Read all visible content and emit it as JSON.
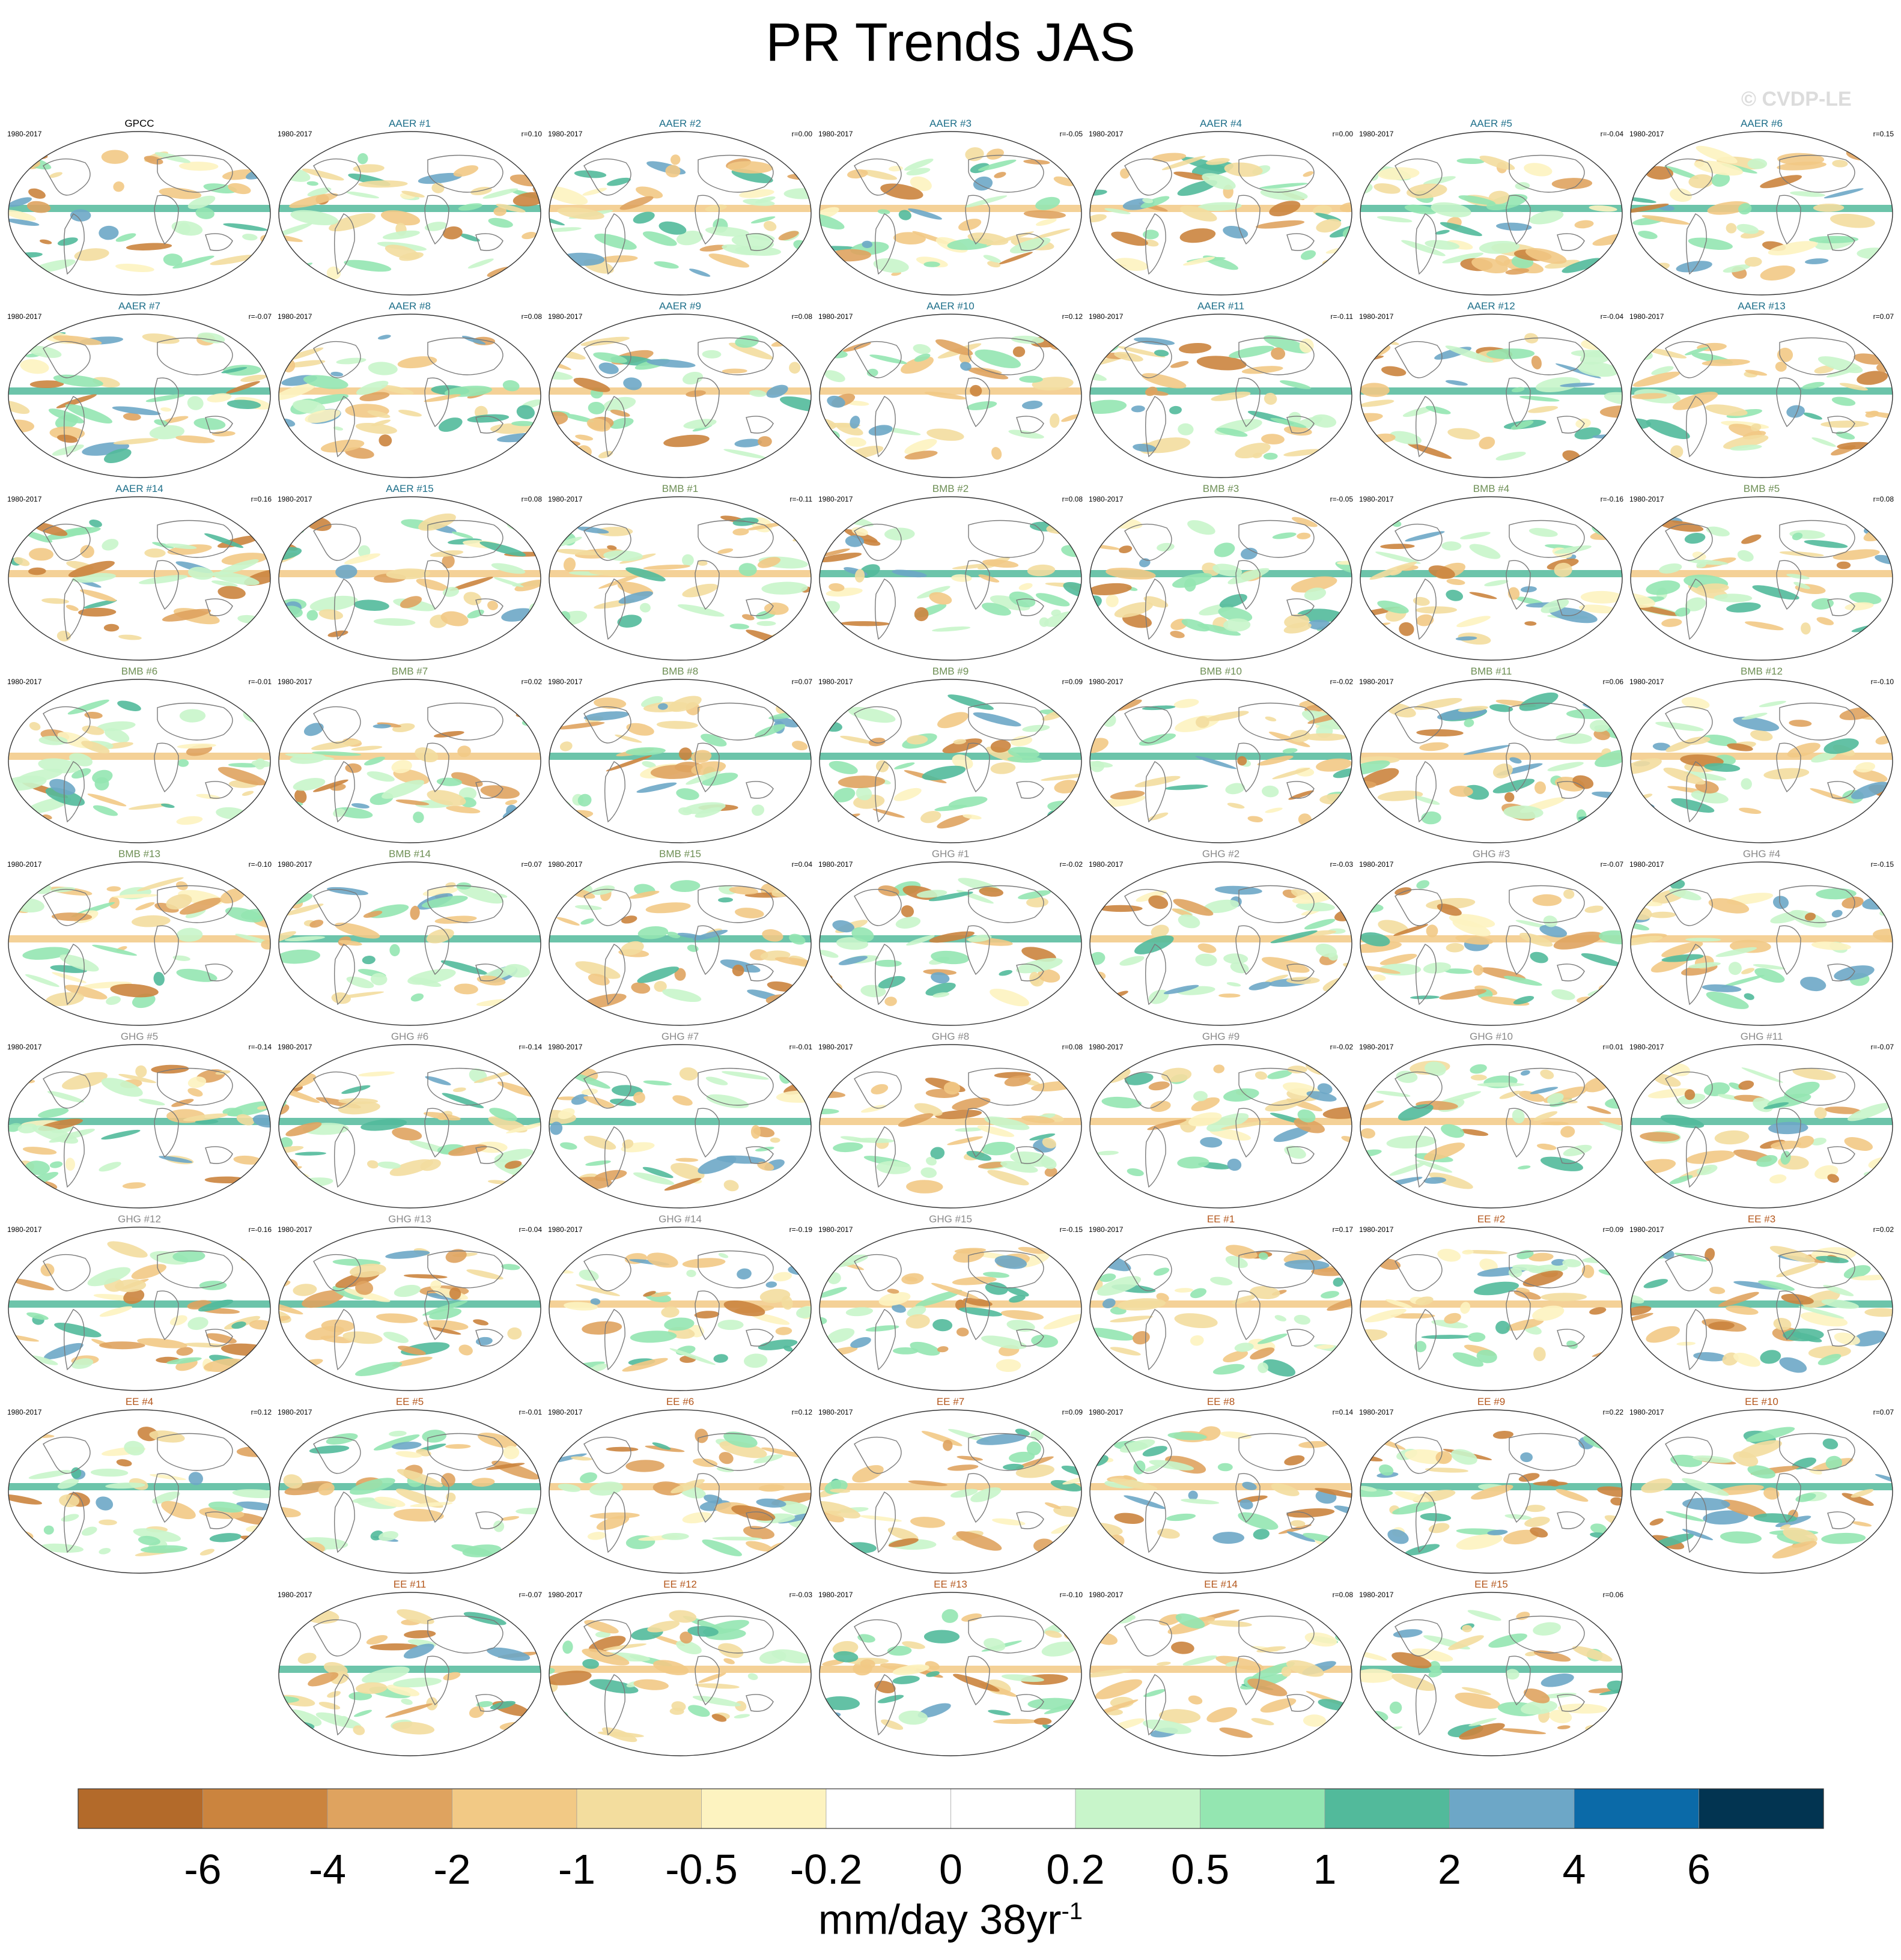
{
  "title": "PR Trends JAS",
  "watermark": "© CVDP-LE",
  "chart_data": {
    "type": "heatmap",
    "title": "PR Trends JAS",
    "projection": "global map panels (Robinson-like), land outlines",
    "period": "1980-2017",
    "colors": {
      "aaer_title": "#1e6f8a",
      "bmb_title": "#6e8f55",
      "ghg_title": "#8a8a8a",
      "ee_title": "#b4571c",
      "gpcc_title": "#000000"
    },
    "panels": [
      {
        "label": "GPCC",
        "group": "obs",
        "period": "1980-2017",
        "r": ""
      },
      {
        "label": "AAER #1",
        "group": "AAER",
        "period": "1980-2017",
        "r": "r=0.10"
      },
      {
        "label": "AAER #2",
        "group": "AAER",
        "period": "1980-2017",
        "r": "r=0.00"
      },
      {
        "label": "AAER #3",
        "group": "AAER",
        "period": "1980-2017",
        "r": "r=-0.05"
      },
      {
        "label": "AAER #4",
        "group": "AAER",
        "period": "1980-2017",
        "r": "r=0.00"
      },
      {
        "label": "AAER #5",
        "group": "AAER",
        "period": "1980-2017",
        "r": "r=-0.04"
      },
      {
        "label": "AAER #6",
        "group": "AAER",
        "period": "1980-2017",
        "r": "r=0.15"
      },
      {
        "label": "AAER #7",
        "group": "AAER",
        "period": "1980-2017",
        "r": "r=-0.07"
      },
      {
        "label": "AAER #8",
        "group": "AAER",
        "period": "1980-2017",
        "r": "r=0.08"
      },
      {
        "label": "AAER #9",
        "group": "AAER",
        "period": "1980-2017",
        "r": "r=0.08"
      },
      {
        "label": "AAER #10",
        "group": "AAER",
        "period": "1980-2017",
        "r": "r=0.12"
      },
      {
        "label": "AAER #11",
        "group": "AAER",
        "period": "1980-2017",
        "r": "r=-0.11"
      },
      {
        "label": "AAER #12",
        "group": "AAER",
        "period": "1980-2017",
        "r": "r=-0.04"
      },
      {
        "label": "AAER #13",
        "group": "AAER",
        "period": "1980-2017",
        "r": "r=0.07"
      },
      {
        "label": "AAER #14",
        "group": "AAER",
        "period": "1980-2017",
        "r": "r=0.16"
      },
      {
        "label": "AAER #15",
        "group": "AAER",
        "period": "1980-2017",
        "r": "r=0.08"
      },
      {
        "label": "BMB #1",
        "group": "BMB",
        "period": "1980-2017",
        "r": "r=-0.11"
      },
      {
        "label": "BMB #2",
        "group": "BMB",
        "period": "1980-2017",
        "r": "r=0.08"
      },
      {
        "label": "BMB #3",
        "group": "BMB",
        "period": "1980-2017",
        "r": "r=-0.05"
      },
      {
        "label": "BMB #4",
        "group": "BMB",
        "period": "1980-2017",
        "r": "r=-0.16"
      },
      {
        "label": "BMB #5",
        "group": "BMB",
        "period": "1980-2017",
        "r": "r=0.08"
      },
      {
        "label": "BMB #6",
        "group": "BMB",
        "period": "1980-2017",
        "r": "r=-0.01"
      },
      {
        "label": "BMB #7",
        "group": "BMB",
        "period": "1980-2017",
        "r": "r=0.02"
      },
      {
        "label": "BMB #8",
        "group": "BMB",
        "period": "1980-2017",
        "r": "r=0.07"
      },
      {
        "label": "BMB #9",
        "group": "BMB",
        "period": "1980-2017",
        "r": "r=0.09"
      },
      {
        "label": "BMB #10",
        "group": "BMB",
        "period": "1980-2017",
        "r": "r=-0.02"
      },
      {
        "label": "BMB #11",
        "group": "BMB",
        "period": "1980-2017",
        "r": "r=0.06"
      },
      {
        "label": "BMB #12",
        "group": "BMB",
        "period": "1980-2017",
        "r": "r=-0.10"
      },
      {
        "label": "BMB #13",
        "group": "BMB",
        "period": "1980-2017",
        "r": "r=-0.10"
      },
      {
        "label": "BMB #14",
        "group": "BMB",
        "period": "1980-2017",
        "r": "r=0.07"
      },
      {
        "label": "BMB #15",
        "group": "BMB",
        "period": "1980-2017",
        "r": "r=0.04"
      },
      {
        "label": "GHG #1",
        "group": "GHG",
        "period": "1980-2017",
        "r": "r=-0.02"
      },
      {
        "label": "GHG #2",
        "group": "GHG",
        "period": "1980-2017",
        "r": "r=-0.03"
      },
      {
        "label": "GHG #3",
        "group": "GHG",
        "period": "1980-2017",
        "r": "r=-0.07"
      },
      {
        "label": "GHG #4",
        "group": "GHG",
        "period": "1980-2017",
        "r": "r=-0.15"
      },
      {
        "label": "GHG #5",
        "group": "GHG",
        "period": "1980-2017",
        "r": "r=-0.14"
      },
      {
        "label": "GHG #6",
        "group": "GHG",
        "period": "1980-2017",
        "r": "r=-0.14"
      },
      {
        "label": "GHG #7",
        "group": "GHG",
        "period": "1980-2017",
        "r": "r=-0.01"
      },
      {
        "label": "GHG #8",
        "group": "GHG",
        "period": "1980-2017",
        "r": "r=0.08"
      },
      {
        "label": "GHG #9",
        "group": "GHG",
        "period": "1980-2017",
        "r": "r=-0.02"
      },
      {
        "label": "GHG #10",
        "group": "GHG",
        "period": "1980-2017",
        "r": "r=0.01"
      },
      {
        "label": "GHG #11",
        "group": "GHG",
        "period": "1980-2017",
        "r": "r=-0.07"
      },
      {
        "label": "GHG #12",
        "group": "GHG",
        "period": "1980-2017",
        "r": "r=-0.16"
      },
      {
        "label": "GHG #13",
        "group": "GHG",
        "period": "1980-2017",
        "r": "r=-0.04"
      },
      {
        "label": "GHG #14",
        "group": "GHG",
        "period": "1980-2017",
        "r": "r=-0.19"
      },
      {
        "label": "GHG #15",
        "group": "GHG",
        "period": "1980-2017",
        "r": "r=-0.15"
      },
      {
        "label": "EE #1",
        "group": "EE",
        "period": "1980-2017",
        "r": "r=0.17"
      },
      {
        "label": "EE #2",
        "group": "EE",
        "period": "1980-2017",
        "r": "r=0.09"
      },
      {
        "label": "EE #3",
        "group": "EE",
        "period": "1980-2017",
        "r": "r=0.02"
      },
      {
        "label": "EE #4",
        "group": "EE",
        "period": "1980-2017",
        "r": "r=0.12"
      },
      {
        "label": "EE #5",
        "group": "EE",
        "period": "1980-2017",
        "r": "r=-0.01"
      },
      {
        "label": "EE #6",
        "group": "EE",
        "period": "1980-2017",
        "r": "r=0.12"
      },
      {
        "label": "EE #7",
        "group": "EE",
        "period": "1980-2017",
        "r": "r=0.09"
      },
      {
        "label": "EE #8",
        "group": "EE",
        "period": "1980-2017",
        "r": "r=0.14"
      },
      {
        "label": "EE #9",
        "group": "EE",
        "period": "1980-2017",
        "r": "r=0.22"
      },
      {
        "label": "EE #10",
        "group": "EE",
        "period": "1980-2017",
        "r": "r=0.07"
      },
      {
        "label": "EE #11",
        "group": "EE",
        "period": "1980-2017",
        "r": "r=-0.07"
      },
      {
        "label": "EE #12",
        "group": "EE",
        "period": "1980-2017",
        "r": "r=-0.03"
      },
      {
        "label": "EE #13",
        "group": "EE",
        "period": "1980-2017",
        "r": "r=-0.10"
      },
      {
        "label": "EE #14",
        "group": "EE",
        "period": "1980-2017",
        "r": "r=0.08"
      },
      {
        "label": "EE #15",
        "group": "EE",
        "period": "1980-2017",
        "r": "r=0.06"
      }
    ],
    "colorbar": {
      "ticks": [
        "-6",
        "-4",
        "-2",
        "-1",
        "-0.5",
        "-0.2",
        "0",
        "0.2",
        "0.5",
        "1",
        "2",
        "4",
        "6"
      ],
      "colors": [
        "#b36a2a",
        "#cb843e",
        "#dfa35f",
        "#f2c985",
        "#f3dd9e",
        "#fdf3c0",
        "#ffffff",
        "#ffffff",
        "#c8f5ca",
        "#94e6b1",
        "#52ba9b",
        "#6da7c7",
        "#0b6aa8",
        "#023451"
      ],
      "units_base": "mm/day 38yr",
      "units_exponent": "-1"
    }
  }
}
